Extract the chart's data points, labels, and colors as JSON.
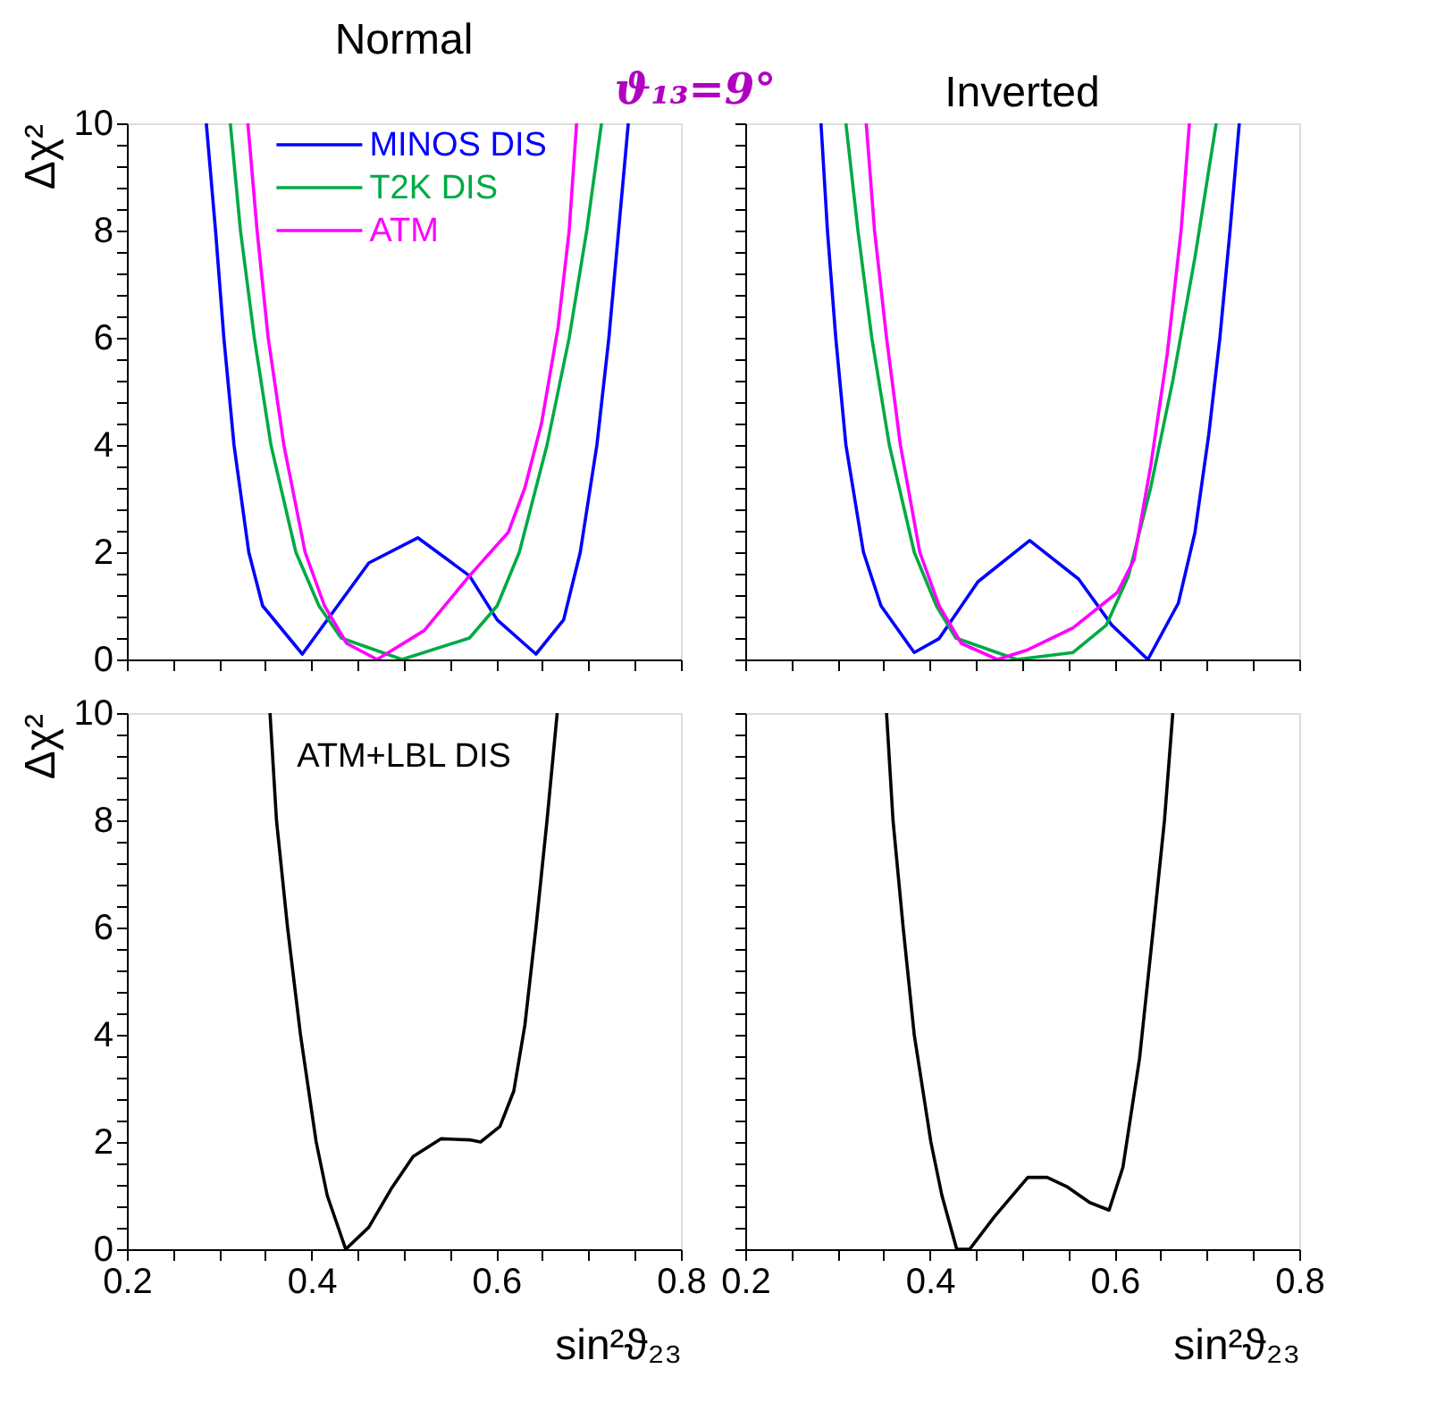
{
  "chart_data": [
    {
      "type": "line",
      "title": "Normal",
      "subtitle": "ϑ₁₃=9°",
      "ylabel": "Δχ²",
      "legend": "top",
      "tick_labels": "y",
      "line_style": "solid",
      "marker": "none",
      "xlim": [
        0.2,
        0.8
      ],
      "ylim": [
        0,
        10
      ],
      "xticks": [
        0.2,
        {
          "value": 0.25,
          "label": null
        },
        {
          "value": 0.3,
          "label": null
        },
        {
          "value": 0.35,
          "label": null
        },
        0.4,
        {
          "value": 0.45,
          "label": null
        },
        {
          "value": 0.5,
          "label": null
        },
        {
          "value": 0.55,
          "label": null
        },
        0.6,
        {
          "value": 0.65,
          "label": null
        },
        {
          "value": 0.7,
          "label": null
        },
        {
          "value": 0.75,
          "label": null
        },
        0.8
      ],
      "yticks": [
        0,
        {
          "value": 0.4,
          "label": null
        },
        {
          "value": 0.8,
          "label": null
        },
        {
          "value": 1.2,
          "label": null
        },
        {
          "value": 1.6,
          "label": null
        },
        2,
        {
          "value": 2.4,
          "label": null
        },
        {
          "value": 2.8,
          "label": null
        },
        {
          "value": 3.2,
          "label": null
        },
        {
          "value": 3.6,
          "label": null
        },
        4,
        {
          "value": 4.4,
          "label": null
        },
        {
          "value": 4.8,
          "label": null
        },
        {
          "value": 5.2,
          "label": null
        },
        {
          "value": 5.6,
          "label": null
        },
        6,
        {
          "value": 6.4,
          "label": null
        },
        {
          "value": 6.8,
          "label": null
        },
        {
          "value": 7.2,
          "label": null
        },
        {
          "value": 7.6,
          "label": null
        },
        8,
        {
          "value": 8.4,
          "label": null
        },
        {
          "value": 8.8,
          "label": null
        },
        {
          "value": 9.2,
          "label": null
        },
        {
          "value": 9.6,
          "label": null
        },
        10
      ],
      "series": [
        {
          "name": "MINOS DIS",
          "color": "#0000ff",
          "x": [
            0.286,
            0.296,
            0.305,
            0.316,
            0.332,
            0.347,
            0.39,
            0.462,
            0.515,
            0.571,
            0.601,
            0.643,
            0.673,
            0.691,
            0.709,
            0.722,
            0.743
          ],
          "values": [
            10,
            8,
            6,
            4,
            2,
            1,
            0.1,
            1.8,
            2.27,
            1.56,
            0.74,
            0.1,
            0.74,
            2,
            4,
            6,
            10
          ]
        },
        {
          "name": "T2K DIS",
          "color": "#00aa44",
          "x": [
            0.312,
            0.323,
            0.338,
            0.356,
            0.383,
            0.408,
            0.432,
            0.498,
            0.571,
            0.601,
            0.625,
            0.655,
            0.679,
            0.698,
            0.714
          ],
          "values": [
            10,
            8,
            6,
            4,
            2,
            1,
            0.4,
            0,
            0.4,
            1,
            2,
            4,
            6,
            8,
            10
          ]
        },
        {
          "name": "ATM",
          "color": "#ff00ff",
          "x": [
            0.331,
            0.341,
            0.353,
            0.37,
            0.393,
            0.414,
            0.438,
            0.471,
            0.522,
            0.571,
            0.613,
            0.631,
            0.649,
            0.667,
            0.679,
            0.687
          ],
          "values": [
            10,
            8,
            6,
            4,
            2,
            1,
            0.3,
            0,
            0.54,
            1.56,
            2.37,
            3.2,
            4.4,
            6.2,
            8,
            10
          ]
        }
      ]
    },
    {
      "type": "line",
      "title": "Inverted",
      "tick_labels": false,
      "line_style": "solid",
      "marker": "none",
      "xlim": [
        0.2,
        0.8
      ],
      "ylim": [
        0,
        10
      ],
      "xticks": [
        0.2,
        {
          "value": 0.25,
          "label": null
        },
        {
          "value": 0.3,
          "label": null
        },
        {
          "value": 0.35,
          "label": null
        },
        0.4,
        {
          "value": 0.45,
          "label": null
        },
        {
          "value": 0.5,
          "label": null
        },
        {
          "value": 0.55,
          "label": null
        },
        0.6,
        {
          "value": 0.65,
          "label": null
        },
        {
          "value": 0.7,
          "label": null
        },
        {
          "value": 0.75,
          "label": null
        },
        0.8
      ],
      "yticks": [
        0,
        {
          "value": 0.4,
          "label": null
        },
        {
          "value": 0.8,
          "label": null
        },
        {
          "value": 1.2,
          "label": null
        },
        {
          "value": 1.6,
          "label": null
        },
        2,
        {
          "value": 2.4,
          "label": null
        },
        {
          "value": 2.8,
          "label": null
        },
        {
          "value": 3.2,
          "label": null
        },
        {
          "value": 3.6,
          "label": null
        },
        4,
        {
          "value": 4.4,
          "label": null
        },
        {
          "value": 4.8,
          "label": null
        },
        {
          "value": 5.2,
          "label": null
        },
        {
          "value": 5.6,
          "label": null
        },
        6,
        {
          "value": 6.4,
          "label": null
        },
        {
          "value": 6.8,
          "label": null
        },
        {
          "value": 7.2,
          "label": null
        },
        {
          "value": 7.6,
          "label": null
        },
        8,
        {
          "value": 8.4,
          "label": null
        },
        {
          "value": 8.8,
          "label": null
        },
        {
          "value": 9.2,
          "label": null
        },
        {
          "value": 9.6,
          "label": null
        },
        10
      ],
      "series": [
        {
          "color": "#0000ff",
          "x": [
            0.282,
            0.289,
            0.298,
            0.309,
            0.328,
            0.347,
            0.383,
            0.41,
            0.452,
            0.508,
            0.561,
            0.597,
            0.636,
            0.669,
            0.687,
            0.702,
            0.714,
            0.725,
            0.735
          ],
          "values": [
            10,
            8,
            6,
            4,
            2,
            1,
            0.13,
            0.39,
            1.45,
            2.22,
            1.5,
            0.64,
            0,
            1.05,
            2.37,
            4.2,
            6,
            8,
            10
          ]
        },
        {
          "color": "#00aa44",
          "x": [
            0.309,
            0.322,
            0.337,
            0.356,
            0.383,
            0.407,
            0.428,
            0.494,
            0.555,
            0.591,
            0.615,
            0.639,
            0.663,
            0.687,
            0.71
          ],
          "values": [
            10,
            8,
            6,
            4,
            2,
            1,
            0.4,
            0,
            0.13,
            0.64,
            1.56,
            3.2,
            5.2,
            7.5,
            10
          ]
        },
        {
          "color": "#ff00ff",
          "x": [
            0.331,
            0.34,
            0.353,
            0.368,
            0.389,
            0.41,
            0.434,
            0.473,
            0.506,
            0.555,
            0.603,
            0.621,
            0.639,
            0.657,
            0.672,
            0.681
          ],
          "values": [
            10,
            8,
            6,
            4,
            2,
            1,
            0.3,
            0,
            0.18,
            0.59,
            1.25,
            1.86,
            3.6,
            5.7,
            8,
            10
          ]
        }
      ]
    },
    {
      "type": "line",
      "ylabel": "Δχ²",
      "xlabel": "sin²ϑ₂₃",
      "annotations": [
        "ATM+LBL DIS"
      ],
      "line_style": "solid",
      "marker": "none",
      "xlim": [
        0.2,
        0.8
      ],
      "ylim": [
        0,
        10
      ],
      "xticks": [
        0.2,
        {
          "value": 0.25,
          "label": null
        },
        {
          "value": 0.3,
          "label": null
        },
        {
          "value": 0.35,
          "label": null
        },
        0.4,
        {
          "value": 0.45,
          "label": null
        },
        {
          "value": 0.5,
          "label": null
        },
        {
          "value": 0.55,
          "label": null
        },
        0.6,
        {
          "value": 0.65,
          "label": null
        },
        {
          "value": 0.7,
          "label": null
        },
        {
          "value": 0.75,
          "label": null
        },
        0.8
      ],
      "yticks": [
        0,
        {
          "value": 0.4,
          "label": null
        },
        {
          "value": 0.8,
          "label": null
        },
        {
          "value": 1.2,
          "label": null
        },
        {
          "value": 1.6,
          "label": null
        },
        2,
        {
          "value": 2.4,
          "label": null
        },
        {
          "value": 2.8,
          "label": null
        },
        {
          "value": 3.2,
          "label": null
        },
        {
          "value": 3.6,
          "label": null
        },
        4,
        {
          "value": 4.4,
          "label": null
        },
        {
          "value": 4.8,
          "label": null
        },
        {
          "value": 5.2,
          "label": null
        },
        {
          "value": 5.6,
          "label": null
        },
        6,
        {
          "value": 6.4,
          "label": null
        },
        {
          "value": 6.8,
          "label": null
        },
        {
          "value": 7.2,
          "label": null
        },
        {
          "value": 7.6,
          "label": null
        },
        8,
        {
          "value": 8.4,
          "label": null
        },
        {
          "value": 8.8,
          "label": null
        },
        {
          "value": 9.2,
          "label": null
        },
        {
          "value": 9.6,
          "label": null
        },
        10
      ],
      "series": [
        {
          "color": "#000000",
          "x": [
            0.355,
            0.362,
            0.374,
            0.388,
            0.405,
            0.417,
            0.437,
            0.462,
            0.486,
            0.51,
            0.54,
            0.571,
            0.583,
            0.604,
            0.619,
            0.631,
            0.643,
            0.655,
            0.666
          ],
          "values": [
            10,
            8,
            6,
            4,
            2,
            1,
            0,
            0.41,
            1.12,
            1.73,
            2.06,
            2.04,
            2,
            2.29,
            2.95,
            4.18,
            6,
            8,
            10
          ]
        }
      ]
    },
    {
      "type": "line",
      "xlabel": "sin²ϑ₂₃",
      "tick_labels": "x",
      "line_style": "solid",
      "marker": "none",
      "xlim": [
        0.2,
        0.8
      ],
      "ylim": [
        0,
        10
      ],
      "xticks": [
        0.2,
        {
          "value": 0.25,
          "label": null
        },
        {
          "value": 0.3,
          "label": null
        },
        {
          "value": 0.35,
          "label": null
        },
        0.4,
        {
          "value": 0.45,
          "label": null
        },
        {
          "value": 0.5,
          "label": null
        },
        {
          "value": 0.55,
          "label": null
        },
        0.6,
        {
          "value": 0.65,
          "label": null
        },
        {
          "value": 0.7,
          "label": null
        },
        {
          "value": 0.75,
          "label": null
        },
        0.8
      ],
      "yticks": [
        0,
        {
          "value": 0.4,
          "label": null
        },
        {
          "value": 0.8,
          "label": null
        },
        {
          "value": 1.2,
          "label": null
        },
        {
          "value": 1.6,
          "label": null
        },
        2,
        {
          "value": 2.4,
          "label": null
        },
        {
          "value": 2.8,
          "label": null
        },
        {
          "value": 3.2,
          "label": null
        },
        {
          "value": 3.6,
          "label": null
        },
        4,
        {
          "value": 4.4,
          "label": null
        },
        {
          "value": 4.8,
          "label": null
        },
        {
          "value": 5.2,
          "label": null
        },
        {
          "value": 5.6,
          "label": null
        },
        6,
        {
          "value": 6.4,
          "label": null
        },
        {
          "value": 6.8,
          "label": null
        },
        {
          "value": 7.2,
          "label": null
        },
        {
          "value": 7.6,
          "label": null
        },
        8,
        {
          "value": 8.4,
          "label": null
        },
        {
          "value": 8.8,
          "label": null
        },
        {
          "value": 9.2,
          "label": null
        },
        {
          "value": 9.6,
          "label": null
        },
        10
      ],
      "series": [
        {
          "color": "#000000",
          "x": [
            0.353,
            0.36,
            0.371,
            0.383,
            0.401,
            0.413,
            0.429,
            0.443,
            0.47,
            0.506,
            0.527,
            0.548,
            0.573,
            0.594,
            0.609,
            0.627,
            0.642,
            0.654,
            0.663
          ],
          "values": [
            10,
            8,
            6,
            4,
            2,
            1,
            0,
            0,
            0.61,
            1.34,
            1.34,
            1.17,
            0.87,
            0.73,
            1.53,
            3.56,
            6,
            8,
            10
          ]
        }
      ]
    }
  ]
}
